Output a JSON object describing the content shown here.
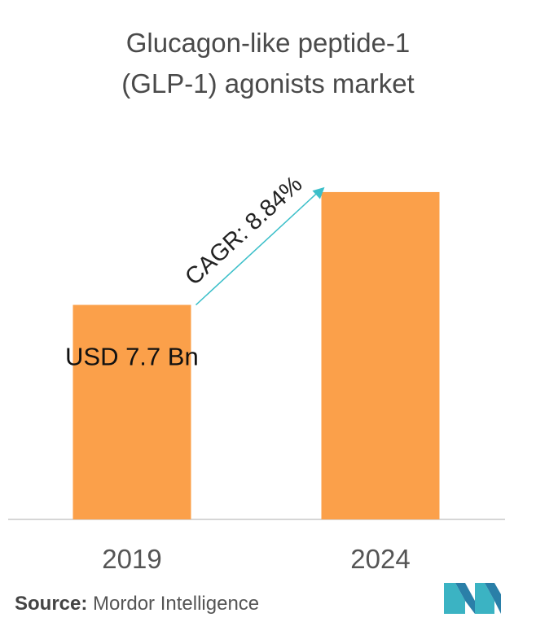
{
  "chart_data": {
    "type": "bar",
    "title_line1": "Glucagon-like peptide-1",
    "title_line2": "(GLP-1) agonists market",
    "categories": [
      "2019",
      "2024"
    ],
    "values": [
      7.7,
      11.75
    ],
    "value_labels": [
      "USD 7.7 Bn",
      ""
    ],
    "annotation": "CAGR: 8.84%",
    "ylim": [
      0,
      12.8
    ],
    "grid": false,
    "colors": {
      "bar": "#FBA04A",
      "arrow": "#3BBFC9",
      "axis": "#C8C8C8"
    }
  },
  "source": {
    "label": "Source:",
    "text": "Mordor Intelligence"
  },
  "logo": {
    "icon": "mordor-intelligence-logo-icon",
    "colors": [
      "#3BB3C3",
      "#2A7FA8"
    ]
  }
}
